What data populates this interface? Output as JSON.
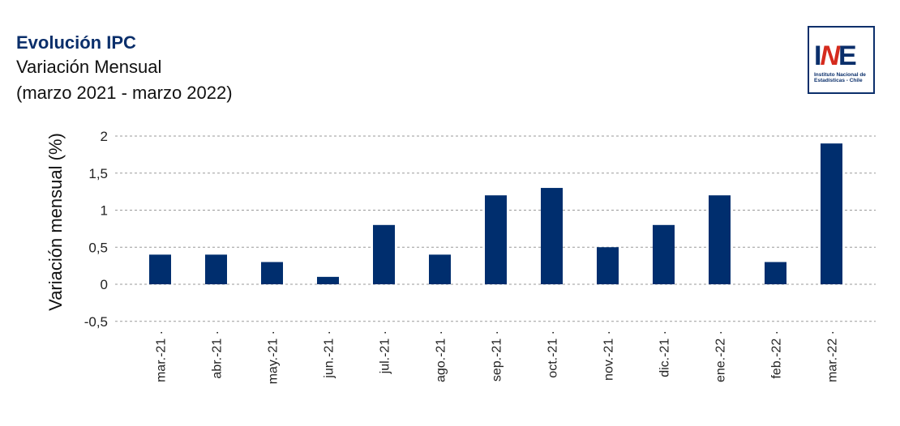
{
  "header": {
    "title": "Evolución IPC",
    "subtitle": "Variación Mensual",
    "period": "(marzo 2021 - marzo 2022)"
  },
  "logo": {
    "mark_i": "I",
    "mark_n": "N",
    "mark_e": "E",
    "line1": "Instituto Nacional de",
    "line2": "Estadísticas - Chile"
  },
  "colors": {
    "bar": "#002e6e",
    "title": "#0b2f6b",
    "accent_red": "#d52b1e",
    "grid": "#9a9a9a"
  },
  "chart_data": {
    "type": "bar",
    "title": "Evolución IPC",
    "xlabel": "",
    "ylabel": "Variación mensual (%)",
    "ylim": [
      -0.5,
      2
    ],
    "grid": true,
    "yticks": [
      -0.5,
      0,
      0.5,
      1,
      1.5,
      2
    ],
    "ytick_labels": [
      "-0,5",
      "0",
      "0,5",
      "1",
      "1,5",
      "2"
    ],
    "categories": [
      "mar.-21",
      "abr.-21",
      "may.-21",
      "jun.-21",
      "jul.-21",
      "ago.-21",
      "sep.-21",
      "oct.-21",
      "nov.-21",
      "dic.-21",
      "ene.-22",
      "feb.-22",
      "mar.-22"
    ],
    "values": [
      0.4,
      0.4,
      0.3,
      0.1,
      0.8,
      0.4,
      1.2,
      1.3,
      0.5,
      0.8,
      1.2,
      0.3,
      1.9
    ]
  }
}
